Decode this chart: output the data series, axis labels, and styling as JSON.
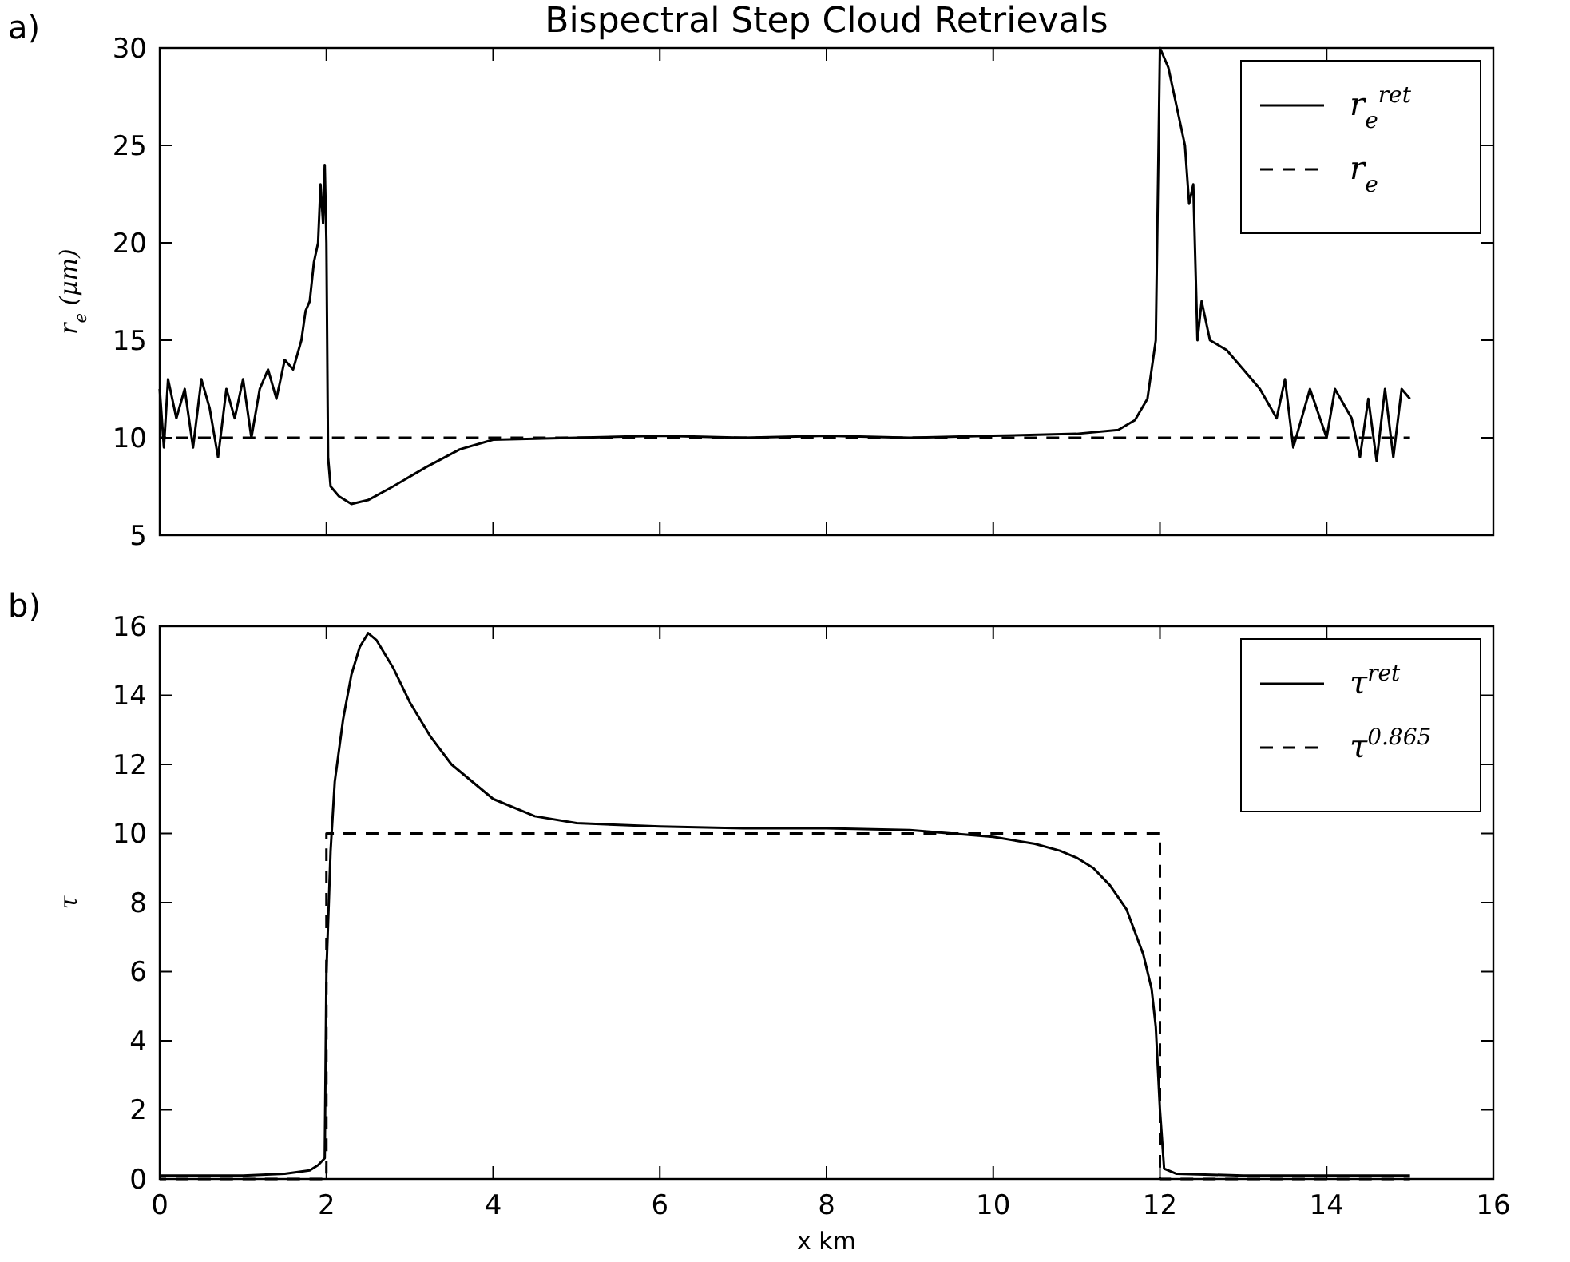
{
  "chart_data": [
    {
      "type": "line",
      "title": "Bispectral Step Cloud Retrievals",
      "ylabel": "r$_{e}$ (μm)",
      "annotations": [
        "a)"
      ],
      "xlim": [
        0,
        16
      ],
      "xticks": [
        0,
        2,
        4,
        6,
        8,
        10,
        12,
        14,
        16
      ],
      "ylim": [
        5,
        30
      ],
      "yticks": [
        5,
        10,
        15,
        20,
        25,
        30
      ],
      "tick_labels": "y",
      "grid": false,
      "legend": "top right",
      "series": [
        {
          "name": "r$_{e}$$^{ret}$",
          "color": "#000000",
          "line_style": "solid",
          "x": [
            0,
            0.05,
            0.1,
            0.2,
            0.3,
            0.4,
            0.5,
            0.6,
            0.7,
            0.8,
            0.9,
            1.0,
            1.1,
            1.2,
            1.3,
            1.4,
            1.5,
            1.6,
            1.7,
            1.75,
            1.8,
            1.85,
            1.9,
            1.93,
            1.96,
            1.98,
            2.0,
            2.02,
            2.05,
            2.15,
            2.3,
            2.5,
            2.8,
            3.2,
            3.6,
            4.0,
            5,
            6,
            7,
            8,
            9,
            10,
            11,
            11.5,
            11.7,
            11.85,
            11.95,
            12.0,
            12.1,
            12.2,
            12.3,
            12.35,
            12.4,
            12.45,
            12.5,
            12.6,
            12.8,
            13.0,
            13.2,
            13.4,
            13.5,
            13.6,
            13.8,
            14.0,
            14.1,
            14.3,
            14.4,
            14.5,
            14.6,
            14.7,
            14.8,
            14.9,
            15
          ],
          "values": [
            12.5,
            9.5,
            13,
            11,
            12.5,
            9.5,
            13,
            11.5,
            9,
            12.5,
            11,
            13,
            10,
            12.5,
            13.5,
            12,
            14,
            13.5,
            15,
            16.5,
            17,
            19,
            20,
            23,
            21,
            24,
            20,
            9,
            7.5,
            7,
            6.6,
            6.8,
            7.5,
            8.5,
            9.4,
            9.9,
            10.0,
            10.1,
            10.0,
            10.1,
            10.0,
            10.1,
            10.2,
            10.4,
            10.9,
            12,
            15,
            30,
            29,
            27,
            25,
            22,
            23,
            15,
            17,
            15,
            14.5,
            13.5,
            12.5,
            11,
            13,
            9.5,
            12.5,
            10,
            12.5,
            11,
            9,
            12,
            8.8,
            12.5,
            9,
            12.5,
            12
          ]
        },
        {
          "name": "r$_{e}$",
          "color": "#000000",
          "line_style": "dashed",
          "x": [
            0,
            15
          ],
          "values": [
            10,
            10
          ]
        }
      ]
    },
    {
      "type": "line",
      "xlabel": "x km",
      "ylabel": "τ",
      "annotations": [
        "b)"
      ],
      "xlim": [
        0,
        16
      ],
      "xticks": [
        0,
        2,
        4,
        6,
        8,
        10,
        12,
        14,
        16
      ],
      "ylim": [
        0,
        16
      ],
      "yticks": [
        0,
        2,
        4,
        6,
        8,
        10,
        12,
        14,
        16
      ],
      "grid": false,
      "legend": "top right",
      "series": [
        {
          "name": "τ$^{ret}$",
          "color": "#000000",
          "line_style": "solid",
          "x": [
            0,
            1.0,
            1.5,
            1.8,
            1.9,
            1.98,
            2.0,
            2.05,
            2.1,
            2.2,
            2.3,
            2.4,
            2.5,
            2.6,
            2.8,
            3.0,
            3.25,
            3.5,
            4.0,
            4.5,
            5,
            6,
            7,
            8,
            9,
            10,
            10.5,
            10.8,
            11.0,
            11.2,
            11.4,
            11.6,
            11.8,
            11.9,
            11.95,
            12.0,
            12.05,
            12.2,
            13,
            15
          ],
          "values": [
            0.1,
            0.1,
            0.15,
            0.25,
            0.4,
            0.6,
            6,
            9.5,
            11.5,
            13.3,
            14.6,
            15.4,
            15.8,
            15.6,
            14.8,
            13.8,
            12.8,
            12,
            11,
            10.5,
            10.3,
            10.2,
            10.15,
            10.15,
            10.1,
            9.9,
            9.7,
            9.5,
            9.3,
            9,
            8.5,
            7.8,
            6.5,
            5.5,
            4.4,
            2,
            0.3,
            0.15,
            0.1,
            0.1
          ]
        },
        {
          "name": "τ$^{0.865}$",
          "color": "#000000",
          "line_style": "dashed",
          "x": [
            0,
            2,
            2,
            12,
            12,
            15
          ],
          "values": [
            0,
            0,
            10,
            10,
            0,
            0
          ]
        }
      ]
    }
  ]
}
